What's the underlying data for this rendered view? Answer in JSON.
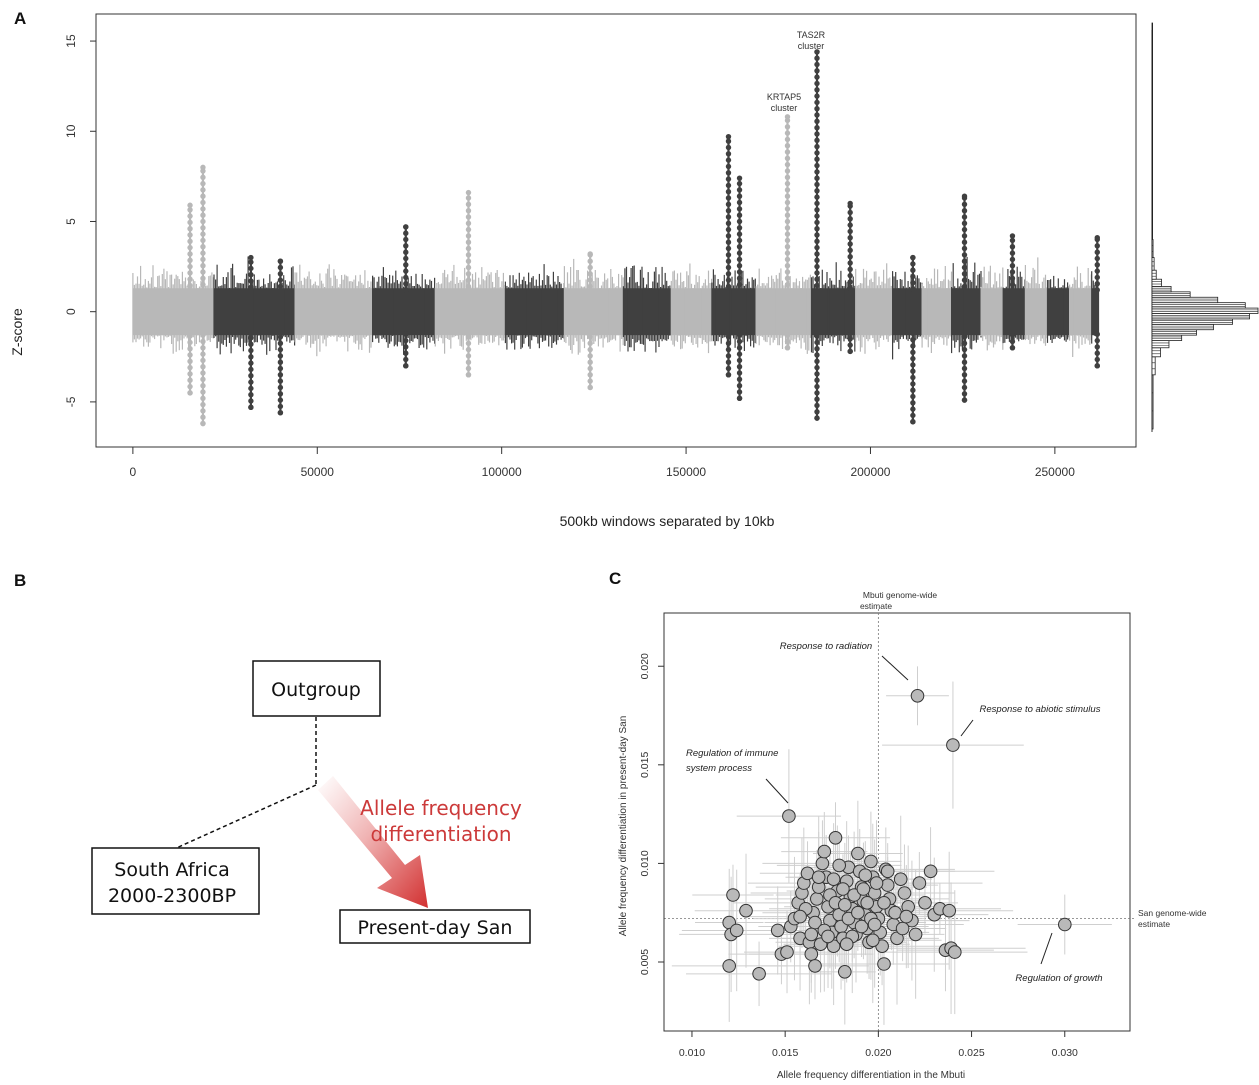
{
  "panels": {
    "a": {
      "letter": "A",
      "ylabel": "Z-score",
      "xlabel": "500kb windows separated by 10kb",
      "ann_tas2r_1": "TAS2R",
      "ann_tas2r_2": "cluster",
      "ann_krtap_1": "KRTAP5",
      "ann_krtap_2": "cluster"
    },
    "b": {
      "letter": "B",
      "outgroup": "Outgroup",
      "south_africa_1": "South Africa",
      "south_africa_2": "2000-2300BP",
      "present_day": "Present-day San",
      "arrow_1": "Allele frequency",
      "arrow_2": "differentiation"
    },
    "c": {
      "letter": "C",
      "xlabel": "Allele frequency differentiation in the Mbuti",
      "ylabel": "Allele frequency differentiation in present-day San",
      "mbuti_1": "Mbuti genome-wide",
      "mbuti_2": "estimate",
      "san_1": "San genome-wide",
      "san_2": "estimate",
      "lab_radiation": "Response to radiation",
      "lab_abiotic": "Response to abiotic stimulus",
      "lab_immune_1": "Regulation of immune",
      "lab_immune_2": "system process",
      "lab_growth": "Regulation of growth"
    }
  },
  "chart_data": [
    {
      "type": "scatter",
      "panel": "A",
      "xlabel": "500kb windows separated by 10kb",
      "ylabel": "Z-score",
      "xlim": [
        -10000,
        272000
      ],
      "ylim": [
        -7.5,
        16.5
      ],
      "xticks": [
        0,
        50000,
        100000,
        150000,
        200000,
        250000
      ],
      "xtick_labels": [
        "0",
        "50000",
        "100000",
        "150000",
        "200000",
        "250000"
      ],
      "yticks": [
        -5,
        0,
        5,
        10,
        15
      ],
      "ytick_labels": [
        "-5",
        "0",
        "5",
        "10",
        "15"
      ],
      "colors": {
        "light": "#b8b8b8",
        "dark": "#404040"
      },
      "chromosomes": [
        {
          "start": 0,
          "end": 22000,
          "shade": "light"
        },
        {
          "start": 22000,
          "end": 44000,
          "shade": "dark"
        },
        {
          "start": 44000,
          "end": 65000,
          "shade": "light"
        },
        {
          "start": 65000,
          "end": 82000,
          "shade": "dark"
        },
        {
          "start": 82000,
          "end": 101000,
          "shade": "light"
        },
        {
          "start": 101000,
          "end": 117000,
          "shade": "dark"
        },
        {
          "start": 117000,
          "end": 133000,
          "shade": "light"
        },
        {
          "start": 133000,
          "end": 146000,
          "shade": "dark"
        },
        {
          "start": 146000,
          "end": 157000,
          "shade": "light"
        },
        {
          "start": 157000,
          "end": 169000,
          "shade": "dark"
        },
        {
          "start": 169000,
          "end": 184000,
          "shade": "light"
        },
        {
          "start": 184000,
          "end": 196000,
          "shade": "dark"
        },
        {
          "start": 196000,
          "end": 206000,
          "shade": "light"
        },
        {
          "start": 206000,
          "end": 214000,
          "shade": "dark"
        },
        {
          "start": 214000,
          "end": 222000,
          "shade": "light"
        },
        {
          "start": 222000,
          "end": 230000,
          "shade": "dark"
        },
        {
          "start": 230000,
          "end": 236000,
          "shade": "light"
        },
        {
          "start": 236000,
          "end": 242000,
          "shade": "dark"
        },
        {
          "start": 242000,
          "end": 248000,
          "shade": "light"
        },
        {
          "start": 248000,
          "end": 254000,
          "shade": "dark"
        },
        {
          "start": 254000,
          "end": 260000,
          "shade": "light"
        },
        {
          "start": 260000,
          "end": 262000,
          "shade": "dark"
        }
      ],
      "peaks": [
        {
          "x": 19000,
          "lo": -6.2,
          "hi": 8.0,
          "shade": "light"
        },
        {
          "x": 15500,
          "lo": -4.5,
          "hi": 5.9,
          "shade": "light"
        },
        {
          "x": 32000,
          "lo": -5.3,
          "hi": 3.0,
          "shade": "dark"
        },
        {
          "x": 40000,
          "lo": -5.6,
          "hi": 2.8,
          "shade": "dark"
        },
        {
          "x": 91000,
          "lo": -3.5,
          "hi": 6.6,
          "shade": "light"
        },
        {
          "x": 74000,
          "lo": -3.0,
          "hi": 4.7,
          "shade": "dark"
        },
        {
          "x": 124000,
          "lo": -4.2,
          "hi": 3.2,
          "shade": "light"
        },
        {
          "x": 161500,
          "lo": -3.5,
          "hi": 9.7,
          "shade": "dark"
        },
        {
          "x": 164500,
          "lo": -4.8,
          "hi": 7.4,
          "shade": "dark"
        },
        {
          "x": 177500,
          "lo": -2.0,
          "hi": 10.8,
          "shade": "light"
        },
        {
          "x": 185500,
          "lo": -5.9,
          "hi": 14.4,
          "shade": "dark"
        },
        {
          "x": 194500,
          "lo": -2.2,
          "hi": 6.0,
          "shade": "dark"
        },
        {
          "x": 211500,
          "lo": -6.1,
          "hi": 3.0,
          "shade": "dark"
        },
        {
          "x": 225500,
          "lo": -4.9,
          "hi": 6.4,
          "shade": "dark"
        },
        {
          "x": 238500,
          "lo": -2.0,
          "hi": 4.2,
          "shade": "dark"
        },
        {
          "x": 261500,
          "lo": -3.0,
          "hi": 4.1,
          "shade": "dark"
        }
      ],
      "annotations": [
        {
          "text": "TAS2R cluster",
          "x": 184500,
          "y": 15.2
        },
        {
          "text": "KRTAP5 cluster",
          "x": 177000,
          "y": 11.6
        }
      ],
      "marginal_histogram": {
        "bins": [
          -6.5,
          -3.5,
          -2.5,
          -2.0,
          -1.6,
          -1.3,
          -1.0,
          -0.7,
          -0.4,
          -0.1,
          0.2,
          0.5,
          0.8,
          1.1,
          1.4,
          1.8,
          2.3,
          3.0,
          4.0,
          16.0
        ],
        "counts": [
          0.01,
          0.03,
          0.08,
          0.16,
          0.28,
          0.42,
          0.58,
          0.76,
          0.92,
          1.0,
          0.88,
          0.62,
          0.36,
          0.18,
          0.09,
          0.04,
          0.02,
          0.01,
          0.005
        ]
      }
    },
    {
      "type": "scatter",
      "panel": "C",
      "xlabel": "Allele frequency differentiation in the Mbuti",
      "ylabel": "Allele frequency differentiation in present-day San",
      "xlim": [
        0.0085,
        0.0335
      ],
      "ylim": [
        0.0015,
        0.0227
      ],
      "xticks": [
        0.01,
        0.015,
        0.02,
        0.025,
        0.03
      ],
      "xtick_labels": [
        "0.010",
        "0.015",
        "0.020",
        "0.025",
        "0.030"
      ],
      "yticks": [
        0.005,
        0.01,
        0.015,
        0.02
      ],
      "ytick_labels": [
        "0.005",
        "0.010",
        "0.015",
        "0.020"
      ],
      "reference_lines": {
        "mbuti_genome_wide_x": 0.02,
        "san_genome_wide_y": 0.0072
      },
      "highlighted": [
        {
          "label": "Response to radiation",
          "x": 0.0221,
          "y": 0.0185
        },
        {
          "label": "Response to abiotic stimulus",
          "x": 0.024,
          "y": 0.016
        },
        {
          "label": "Regulation of immune system process",
          "x": 0.0152,
          "y": 0.0124
        },
        {
          "label": "Regulation of growth",
          "x": 0.03,
          "y": 0.0069
        }
      ],
      "points": [
        [
          0.0122,
          0.0084
        ],
        [
          0.012,
          0.007
        ],
        [
          0.0121,
          0.0064
        ],
        [
          0.0124,
          0.0066
        ],
        [
          0.012,
          0.0048
        ],
        [
          0.0129,
          0.0076
        ],
        [
          0.0136,
          0.0044
        ],
        [
          0.0146,
          0.0066
        ],
        [
          0.0148,
          0.0054
        ],
        [
          0.0151,
          0.0055
        ],
        [
          0.0153,
          0.0068
        ],
        [
          0.0155,
          0.0072
        ],
        [
          0.0157,
          0.008
        ],
        [
          0.0159,
          0.0085
        ],
        [
          0.016,
          0.009
        ],
        [
          0.0162,
          0.0095
        ],
        [
          0.0158,
          0.0062
        ],
        [
          0.0163,
          0.006
        ],
        [
          0.0164,
          0.0054
        ],
        [
          0.0166,
          0.0048
        ],
        [
          0.0165,
          0.0075
        ],
        [
          0.0167,
          0.0082
        ],
        [
          0.0168,
          0.0088
        ],
        [
          0.017,
          0.01
        ],
        [
          0.0171,
          0.0106
        ],
        [
          0.0172,
          0.0093
        ],
        [
          0.0173,
          0.0078
        ],
        [
          0.0174,
          0.0071
        ],
        [
          0.0175,
          0.0065
        ],
        [
          0.0176,
          0.0058
        ],
        [
          0.0177,
          0.0113
        ],
        [
          0.0178,
          0.0086
        ],
        [
          0.0179,
          0.0074
        ],
        [
          0.018,
          0.0068
        ],
        [
          0.0181,
          0.0062
        ],
        [
          0.0182,
          0.0045
        ],
        [
          0.0183,
          0.0091
        ],
        [
          0.0184,
          0.0098
        ],
        [
          0.0185,
          0.0083
        ],
        [
          0.0186,
          0.0077
        ],
        [
          0.0187,
          0.007
        ],
        [
          0.0188,
          0.0064
        ],
        [
          0.0189,
          0.0105
        ],
        [
          0.019,
          0.0096
        ],
        [
          0.0191,
          0.0088
        ],
        [
          0.0192,
          0.0081
        ],
        [
          0.0193,
          0.0074
        ],
        [
          0.0194,
          0.0067
        ],
        [
          0.0195,
          0.006
        ],
        [
          0.0196,
          0.0101
        ],
        [
          0.0197,
          0.0093
        ],
        [
          0.0198,
          0.0085
        ],
        [
          0.0199,
          0.0078
        ],
        [
          0.02,
          0.0072
        ],
        [
          0.0201,
          0.0065
        ],
        [
          0.0202,
          0.0058
        ],
        [
          0.0203,
          0.0049
        ],
        [
          0.0204,
          0.0097
        ],
        [
          0.0205,
          0.0089
        ],
        [
          0.0206,
          0.0082
        ],
        [
          0.0207,
          0.0076
        ],
        [
          0.0208,
          0.0069
        ],
        [
          0.021,
          0.0062
        ],
        [
          0.0212,
          0.0092
        ],
        [
          0.0214,
          0.0085
        ],
        [
          0.0216,
          0.0078
        ],
        [
          0.0218,
          0.0071
        ],
        [
          0.022,
          0.0064
        ],
        [
          0.0222,
          0.009
        ],
        [
          0.0225,
          0.008
        ],
        [
          0.0228,
          0.0096
        ],
        [
          0.023,
          0.0074
        ],
        [
          0.0233,
          0.0077
        ],
        [
          0.0236,
          0.0056
        ],
        [
          0.0239,
          0.0057
        ],
        [
          0.0241,
          0.0055
        ],
        [
          0.0238,
          0.0076
        ],
        [
          0.0166,
          0.007
        ],
        [
          0.0171,
          0.0066
        ],
        [
          0.0176,
          0.0092
        ],
        [
          0.0181,
          0.0087
        ],
        [
          0.0186,
          0.0063
        ],
        [
          0.0191,
          0.0068
        ],
        [
          0.0196,
          0.0072
        ],
        [
          0.0174,
          0.0084
        ],
        [
          0.0184,
          0.0072
        ],
        [
          0.0194,
          0.008
        ],
        [
          0.0161,
          0.0077
        ],
        [
          0.0169,
          0.0059
        ],
        [
          0.0179,
          0.0099
        ],
        [
          0.0189,
          0.0075
        ],
        [
          0.0199,
          0.009
        ],
        [
          0.0209,
          0.0075
        ],
        [
          0.0213,
          0.0067
        ],
        [
          0.0187,
          0.0084
        ],
        [
          0.0177,
          0.008
        ],
        [
          0.0197,
          0.0061
        ],
        [
          0.0205,
          0.0096
        ],
        [
          0.0168,
          0.0093
        ],
        [
          0.0183,
          0.0059
        ],
        [
          0.0193,
          0.0094
        ],
        [
          0.0203,
          0.008
        ],
        [
          0.0158,
          0.0073
        ],
        [
          0.0173,
          0.0063
        ],
        [
          0.0198,
          0.0069
        ],
        [
          0.0215,
          0.0073
        ],
        [
          0.0182,
          0.0079
        ],
        [
          0.0192,
          0.0087
        ],
        [
          0.0164,
          0.0064
        ]
      ]
    }
  ]
}
